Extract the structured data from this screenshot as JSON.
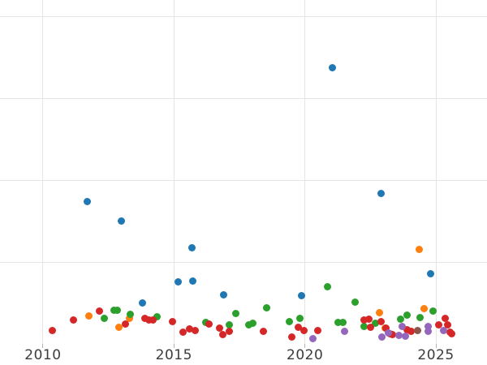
{
  "chart_data": {
    "type": "scatter",
    "title": "",
    "xlabel": "",
    "ylabel": "",
    "grid": true,
    "legend": "none",
    "background_color": "#ffffff",
    "gridline_color": "#e5e5e5",
    "tick_mark_color": "#b3b3b3",
    "tick_label_color": "#3c3c3c",
    "xlim": [
      2008.36,
      2026.95
    ],
    "ylim": [
      0,
      4.2
    ],
    "x_ticks": [
      2010,
      2015,
      2020,
      2025
    ],
    "x_tick_labels": [
      "2010",
      "2015",
      "2020",
      "2025"
    ],
    "y_gridline_values": [
      1,
      2,
      3,
      4
    ],
    "y_tick_labels_visible": false,
    "series": [
      {
        "name": "blue",
        "color": "#1f77b4",
        "points": [
          [
            2011.7,
            1.74
          ],
          [
            2013.0,
            1.5
          ],
          [
            2013.8,
            0.5
          ],
          [
            2015.15,
            0.76
          ],
          [
            2015.68,
            1.17
          ],
          [
            2015.72,
            0.77
          ],
          [
            2016.9,
            0.6
          ],
          [
            2019.88,
            0.59
          ],
          [
            2021.05,
            3.37
          ],
          [
            2022.9,
            1.84
          ],
          [
            2024.8,
            0.86
          ]
        ]
      },
      {
        "name": "orange",
        "color": "#ff7f0e",
        "points": [
          [
            2011.75,
            0.34
          ],
          [
            2012.9,
            0.2
          ],
          [
            2013.3,
            0.31
          ],
          [
            2022.85,
            0.38
          ],
          [
            2023.05,
            0.19
          ],
          [
            2024.35,
            1.15
          ],
          [
            2024.55,
            0.43
          ]
        ]
      },
      {
        "name": "green",
        "color": "#2ca02c",
        "points": [
          [
            2012.35,
            0.31
          ],
          [
            2012.7,
            0.41
          ],
          [
            2012.85,
            0.41
          ],
          [
            2013.32,
            0.36
          ],
          [
            2014.35,
            0.33
          ],
          [
            2016.2,
            0.26
          ],
          [
            2017.1,
            0.23
          ],
          [
            2017.35,
            0.37
          ],
          [
            2017.85,
            0.23
          ],
          [
            2018.0,
            0.25
          ],
          [
            2018.55,
            0.44
          ],
          [
            2019.4,
            0.27
          ],
          [
            2019.8,
            0.31
          ],
          [
            2020.85,
            0.7
          ],
          [
            2021.25,
            0.26
          ],
          [
            2021.45,
            0.26
          ],
          [
            2021.9,
            0.51
          ],
          [
            2022.25,
            0.21
          ],
          [
            2022.7,
            0.25
          ],
          [
            2023.65,
            0.3
          ],
          [
            2023.9,
            0.35
          ],
          [
            2024.4,
            0.32
          ],
          [
            2024.9,
            0.4
          ]
        ]
      },
      {
        "name": "red",
        "color": "#d62728",
        "points": [
          [
            2010.35,
            0.16
          ],
          [
            2011.15,
            0.29
          ],
          [
            2012.15,
            0.4
          ],
          [
            2013.15,
            0.24
          ],
          [
            2013.9,
            0.31
          ],
          [
            2014.05,
            0.29
          ],
          [
            2014.2,
            0.29
          ],
          [
            2014.95,
            0.27
          ],
          [
            2015.35,
            0.14
          ],
          [
            2015.6,
            0.18
          ],
          [
            2015.8,
            0.16
          ],
          [
            2016.35,
            0.24
          ],
          [
            2016.75,
            0.19
          ],
          [
            2016.85,
            0.11
          ],
          [
            2017.1,
            0.15
          ],
          [
            2018.4,
            0.15
          ],
          [
            2019.5,
            0.08
          ],
          [
            2019.75,
            0.2
          ],
          [
            2019.95,
            0.16
          ],
          [
            2020.5,
            0.16
          ],
          [
            2022.25,
            0.29
          ],
          [
            2022.45,
            0.3
          ],
          [
            2022.5,
            0.2
          ],
          [
            2022.9,
            0.27
          ],
          [
            2023.1,
            0.19
          ],
          [
            2023.25,
            0.12
          ],
          [
            2023.35,
            0.11
          ],
          [
            2023.9,
            0.17
          ],
          [
            2024.05,
            0.15
          ],
          [
            2025.1,
            0.23
          ],
          [
            2025.35,
            0.31
          ],
          [
            2025.45,
            0.23
          ],
          [
            2025.55,
            0.14
          ],
          [
            2025.6,
            0.12
          ]
        ]
      },
      {
        "name": "purple",
        "color": "#9467bd",
        "points": [
          [
            2020.3,
            0.06
          ],
          [
            2021.5,
            0.15
          ],
          [
            2022.95,
            0.08
          ],
          [
            2023.2,
            0.13
          ],
          [
            2023.6,
            0.1
          ],
          [
            2023.7,
            0.21
          ],
          [
            2023.85,
            0.09
          ],
          [
            2024.7,
            0.21
          ],
          [
            2024.7,
            0.15
          ],
          [
            2025.3,
            0.16
          ]
        ]
      },
      {
        "name": "brown",
        "color": "#8c564b",
        "points": [
          [
            2024.3,
            0.16
          ]
        ]
      }
    ]
  }
}
